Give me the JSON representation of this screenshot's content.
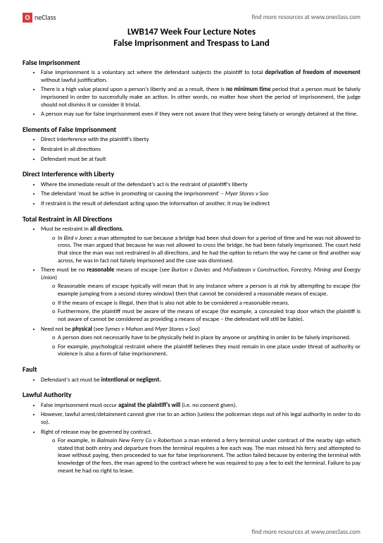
{
  "brand": {
    "logo_letter": "O",
    "logo_text": "neClass",
    "header_link": "find more resources at www.oneclass.com",
    "footer_link": "find more resources at www.oneclass.com"
  },
  "title": "LWB147 Week Four Lecture Notes",
  "subtitle": "False Imprisonment and Trespass to Land",
  "sections": {
    "s1": {
      "heading": "False Imprisonment",
      "b1a": "False imprisonment is a voluntary act where the defendant subjects the plaintiff to total ",
      "b1b": "deprivation of freedom of movement",
      "b1c": " without lawful justification.",
      "b2a": "There is a high value placed upon a person's liberty and as a result, there is ",
      "b2b": "no minimum time",
      "b2c": " period that a person must be falsely imprisoned in order to successfully make an action. In other words, no matter how short the period of imprisonment, the judge should not dismiss it or consider it trivial.",
      "b3": "A person may sue for false imprisonment even if they were not aware that they were being falsely or wrongly detained at the time."
    },
    "s2": {
      "heading": "Elements of False Imprisonment",
      "b1": "Direct interference with the plaintiff's liberty",
      "b2": "Restraint in all directions",
      "b3": "Defendant must be at fault"
    },
    "s3": {
      "heading": "Direct Interference with Liberty",
      "b1": "Where the immediate result of the defendant's act is the restraint of plaintiff's liberty",
      "b2a": "The defendant 'must be active in promoting or causing the imprisonment' – ",
      "b2b": "Myer Stores v Soo",
      "b3": "If restraint is the result of defendant acting upon the information of another, it may be indirect"
    },
    "s4": {
      "heading": "Total Restraint in All Directions",
      "b1a": "Must be restraint in ",
      "b1b": "all directions.",
      "b1s1a": "In ",
      "b1s1b": "Bird v Jones",
      "b1s1c": " a man attempted to sue because a bridge had been shut down for a period of time and he was not allowed to cross. The man argued that because he was not allowed to cross the bridge, he had been falsely imprisoned. The court held that since the man was not restrained in all directions, and he had the option to return the way he came or find another way across, he was in fact not falsely imprisoned and the case was dismissed.",
      "b2a": "There must be no ",
      "b2b": "reasonable",
      "b2c": " means of escape (see ",
      "b2d": "Burton v Davies",
      "b2e": " and ",
      "b2f": "McFadzean v Construction, Forestry, Mining and Energy Union",
      "b2g": ")",
      "b2s1": "Reasonable means of escape typically will mean that in any instance where a person is at risk by attempting to escape (for example jumping from a second storey window) then that cannot be considered a reasonable means of escape.",
      "b2s2": "If the means of escape is illegal, then that is also not able to be considered a reasonable means.",
      "b2s3": "Furthermore, the plaintiff must be aware of the means of escape (for example, a concealed trap door which the plaintiff is not aware of cannot be considered as providing a means of escape – the defendant will still be liable).",
      "b3a": "Need not be ",
      "b3b": "physical",
      "b3c": " (see ",
      "b3d": "Symes v Mahon",
      "b3e": " and ",
      "b3f": "Myer Stores v Soo",
      "b3g": ")",
      "b3s1": "A person does not necessarily have to be physically held in place by anyone or anything in order to be falsely imprisoned.",
      "b3s2": "For example, psychological restraint where the plaintiff believes they must remain in one place under threat of authority or violence is also a form of false imprisonment."
    },
    "s5": {
      "heading": "Fault",
      "b1a": "Defendant's act must be ",
      "b1b": "intentional or negligent."
    },
    "s6": {
      "heading": "Lawful Authority",
      "b1a": "False imprisonment must occur ",
      "b1b": "against the plaintiff's will",
      "b1c": " (i.e. no consent given).",
      "b2": "However, lawful arrest/detainment cannot give rise to an action (unless the policeman steps out of his legal authority in order to do so).",
      "b3": "Right of release may be governed by contract.",
      "b3s1a": "For example, in ",
      "b3s1b": "Balmain New Ferry Co v Robertson",
      "b3s1c": " a man entered a ferry terminal under contract of the nearby sign which stated that both entry and departure from the terminal requires a fee each way. The man missed his ferry and attempted to leave without paying, then proceeded to sue for false imprisonment. The action failed because by entering the terminal with knowledge of the fees, the man agreed to the contract where he was required to pay a fee to exit the terminal. Failure to pay meant he had no right to leave."
    }
  }
}
